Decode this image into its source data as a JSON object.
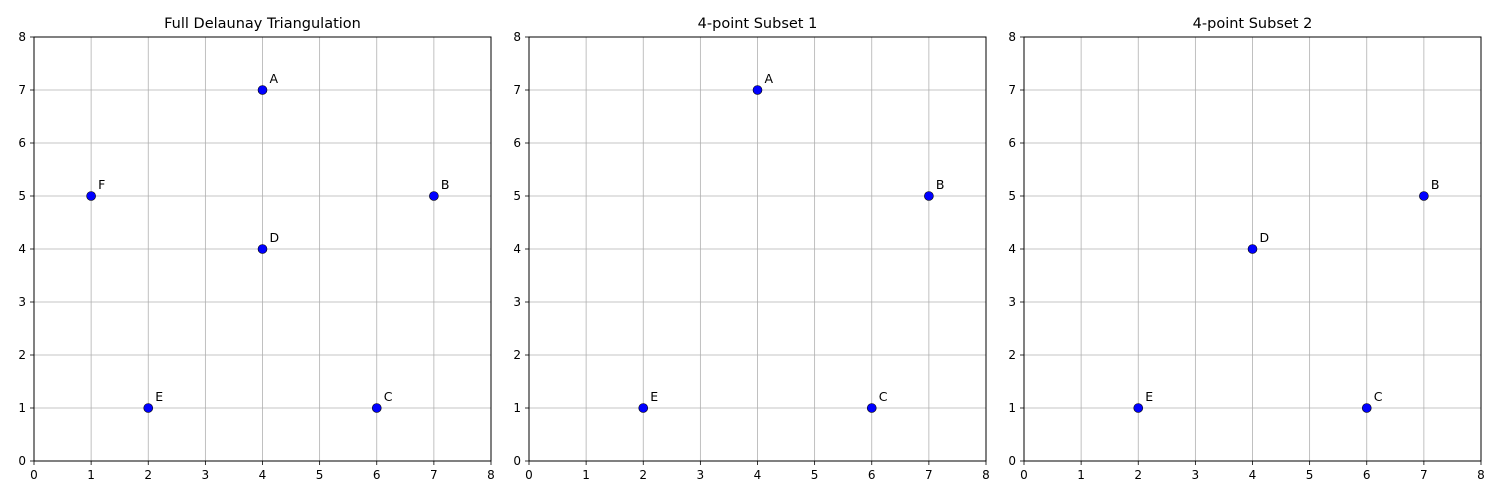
{
  "chart_data": [
    {
      "type": "scatter",
      "title": "Full Delaunay Triangulation",
      "xlabel": "",
      "ylabel": "",
      "xlim": [
        0,
        8
      ],
      "ylim": [
        0,
        8
      ],
      "xticks": [
        0,
        1,
        2,
        3,
        4,
        5,
        6,
        7,
        8
      ],
      "yticks": [
        0,
        1,
        2,
        3,
        4,
        5,
        6,
        7,
        8
      ],
      "grid": true,
      "marker_color": "#0000ff",
      "points": [
        {
          "label": "A",
          "x": 4,
          "y": 7
        },
        {
          "label": "B",
          "x": 7,
          "y": 5
        },
        {
          "label": "C",
          "x": 6,
          "y": 1
        },
        {
          "label": "D",
          "x": 4,
          "y": 4
        },
        {
          "label": "E",
          "x": 2,
          "y": 1
        },
        {
          "label": "F",
          "x": 1,
          "y": 5
        }
      ]
    },
    {
      "type": "scatter",
      "title": "4-point Subset 1",
      "xlabel": "",
      "ylabel": "",
      "xlim": [
        0,
        8
      ],
      "ylim": [
        0,
        8
      ],
      "xticks": [
        0,
        1,
        2,
        3,
        4,
        5,
        6,
        7,
        8
      ],
      "yticks": [
        0,
        1,
        2,
        3,
        4,
        5,
        6,
        7,
        8
      ],
      "grid": true,
      "marker_color": "#0000ff",
      "points": [
        {
          "label": "A",
          "x": 4,
          "y": 7
        },
        {
          "label": "B",
          "x": 7,
          "y": 5
        },
        {
          "label": "C",
          "x": 6,
          "y": 1
        },
        {
          "label": "E",
          "x": 2,
          "y": 1
        }
      ]
    },
    {
      "type": "scatter",
      "title": "4-point Subset 2",
      "xlabel": "",
      "ylabel": "",
      "xlim": [
        0,
        8
      ],
      "ylim": [
        0,
        8
      ],
      "xticks": [
        0,
        1,
        2,
        3,
        4,
        5,
        6,
        7,
        8
      ],
      "yticks": [
        0,
        1,
        2,
        3,
        4,
        5,
        6,
        7,
        8
      ],
      "grid": true,
      "marker_color": "#0000ff",
      "points": [
        {
          "label": "B",
          "x": 7,
          "y": 5
        },
        {
          "label": "C",
          "x": 6,
          "y": 1
        },
        {
          "label": "D",
          "x": 4,
          "y": 4
        },
        {
          "label": "E",
          "x": 2,
          "y": 1
        }
      ]
    }
  ]
}
